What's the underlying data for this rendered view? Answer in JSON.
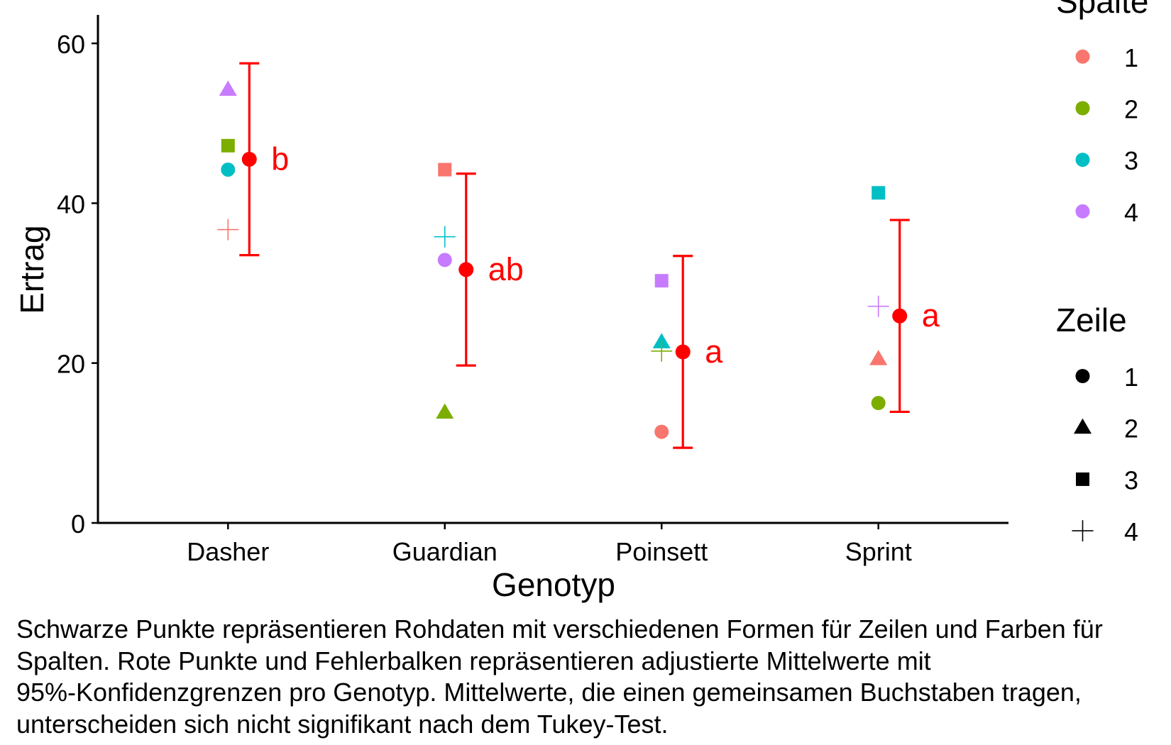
{
  "chart_data": {
    "type": "scatter",
    "xlabel": "Genotyp",
    "ylabel": "Ertrag",
    "categories": [
      "Dasher",
      "Guardian",
      "Poinsett",
      "Sprint"
    ],
    "ylim": [
      0,
      63.5
    ],
    "yticks": [
      0,
      20,
      40,
      60
    ],
    "grid": false,
    "legend_position": "right",
    "mean_color": "#FF0000",
    "axis_color": "#000000",
    "legend_spalte": {
      "title": "Spalte",
      "items": [
        {
          "label": "1",
          "color": "#F8766D"
        },
        {
          "label": "2",
          "color": "#7CAE00"
        },
        {
          "label": "3",
          "color": "#00BFC4"
        },
        {
          "label": "4",
          "color": "#C77CFF"
        }
      ]
    },
    "legend_zeile": {
      "title": "Zeile",
      "items": [
        {
          "label": "1",
          "shape": "circle"
        },
        {
          "label": "2",
          "shape": "triangle"
        },
        {
          "label": "3",
          "shape": "square"
        },
        {
          "label": "4",
          "shape": "plus"
        }
      ]
    },
    "raw_points": [
      {
        "genotyp": "Dasher",
        "zeile": "1",
        "spalte": "3",
        "ertrag": 44.2
      },
      {
        "genotyp": "Dasher",
        "zeile": "2",
        "spalte": "4",
        "ertrag": 54.2
      },
      {
        "genotyp": "Dasher",
        "zeile": "3",
        "spalte": "2",
        "ertrag": 47.2
      },
      {
        "genotyp": "Dasher",
        "zeile": "4",
        "spalte": "1",
        "ertrag": 36.7
      },
      {
        "genotyp": "Guardian",
        "zeile": "1",
        "spalte": "4",
        "ertrag": 32.9
      },
      {
        "genotyp": "Guardian",
        "zeile": "2",
        "spalte": "2",
        "ertrag": 13.8
      },
      {
        "genotyp": "Guardian",
        "zeile": "3",
        "spalte": "1",
        "ertrag": 44.2
      },
      {
        "genotyp": "Guardian",
        "zeile": "4",
        "spalte": "3",
        "ertrag": 35.8
      },
      {
        "genotyp": "Poinsett",
        "zeile": "1",
        "spalte": "1",
        "ertrag": 11.4
      },
      {
        "genotyp": "Poinsett",
        "zeile": "2",
        "spalte": "3",
        "ertrag": 22.6
      },
      {
        "genotyp": "Poinsett",
        "zeile": "3",
        "spalte": "4",
        "ertrag": 30.3
      },
      {
        "genotyp": "Poinsett",
        "zeile": "4",
        "spalte": "2",
        "ertrag": 21.5
      },
      {
        "genotyp": "Sprint",
        "zeile": "1",
        "spalte": "2",
        "ertrag": 15.0
      },
      {
        "genotyp": "Sprint",
        "zeile": "2",
        "spalte": "1",
        "ertrag": 20.5
      },
      {
        "genotyp": "Sprint",
        "zeile": "3",
        "spalte": "3",
        "ertrag": 41.3
      },
      {
        "genotyp": "Sprint",
        "zeile": "4",
        "spalte": "4",
        "ertrag": 27.1
      }
    ],
    "means": [
      {
        "genotyp": "Dasher",
        "mean": 45.5,
        "lower": 33.5,
        "upper": 57.5,
        "letter": "b"
      },
      {
        "genotyp": "Guardian",
        "mean": 31.7,
        "lower": 19.7,
        "upper": 43.7,
        "letter": "ab"
      },
      {
        "genotyp": "Poinsett",
        "mean": 21.4,
        "lower": 9.4,
        "upper": 33.4,
        "letter": "a"
      },
      {
        "genotyp": "Sprint",
        "mean": 25.9,
        "lower": 13.9,
        "upper": 37.9,
        "letter": "a"
      }
    ]
  },
  "caption_lines": [
    "Schwarze Punkte repräsentieren Rohdaten mit verschiedenen Formen für Zeilen und Farben für",
    "Spalten. Rote Punkte und Fehlerbalken repräsentieren adjustierte Mittelwerte mit",
    "95%-Konfidenzgrenzen pro Genotyp. Mittelwerte, die einen gemeinsamen Buchstaben tragen,",
    "unterscheiden sich nicht signifikant nach dem Tukey-Test."
  ]
}
